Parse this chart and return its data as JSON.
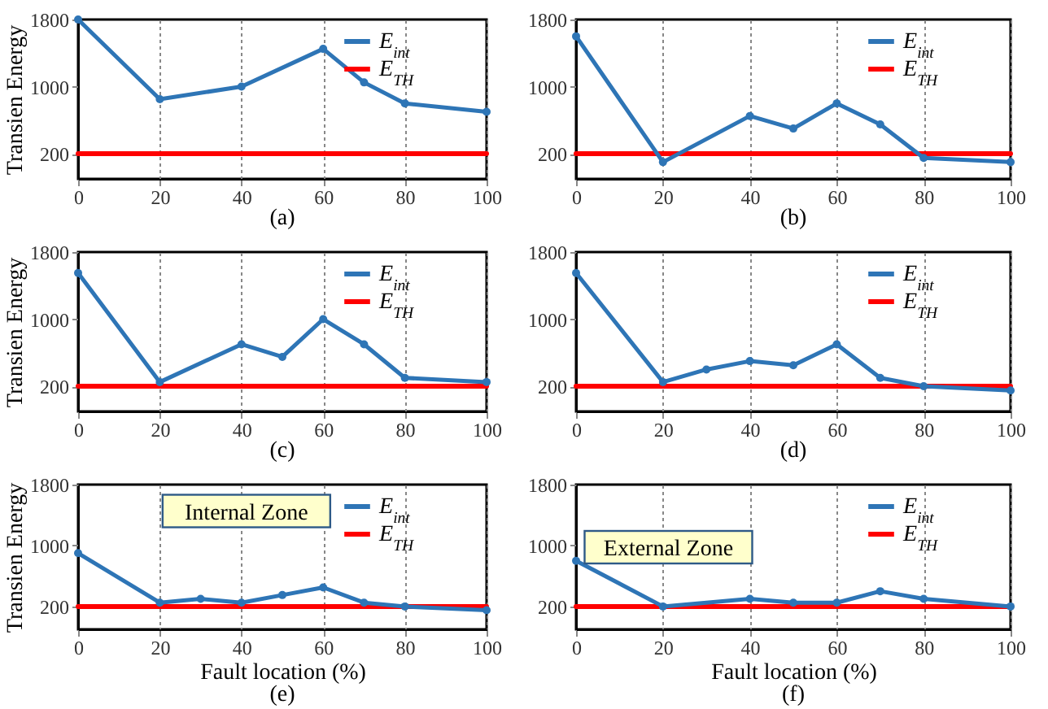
{
  "chart_data": [
    {
      "type": "line",
      "title": "(a)",
      "ylabel": "Transien Energy",
      "xlim": [
        0,
        100
      ],
      "xticks": [
        0,
        20,
        40,
        60,
        80,
        100
      ],
      "ylim": [
        -100,
        1800
      ],
      "yticks": [
        200,
        1000,
        1800
      ],
      "grid": "x",
      "legend": "top right",
      "series": [
        {
          "name": "E$_{int}$",
          "color": "#2e75b6",
          "marker": "circle",
          "x": [
            0,
            20,
            40,
            60,
            70,
            80,
            100
          ],
          "values": [
            1800,
            850,
            1000,
            1450,
            1050,
            800,
            700
          ]
        },
        {
          "name": "E$_{TH}$",
          "color": "#ff0000",
          "marker": "none",
          "x": [
            0,
            100
          ],
          "values": [
            200,
            200
          ]
        }
      ]
    },
    {
      "type": "line",
      "title": "(b)",
      "xlim": [
        0,
        100
      ],
      "xticks": [
        0,
        20,
        40,
        60,
        80,
        100
      ],
      "ylim": [
        -100,
        1800
      ],
      "yticks": [
        200,
        1000,
        1800
      ],
      "grid": "x",
      "legend": "top right",
      "series": [
        {
          "name": "E$_{int}$",
          "color": "#2e75b6",
          "marker": "circle",
          "x": [
            0,
            20,
            40,
            50,
            60,
            70,
            80,
            100
          ],
          "values": [
            1600,
            100,
            650,
            500,
            800,
            550,
            150,
            100
          ]
        },
        {
          "name": "E$_{TH}$",
          "color": "#ff0000",
          "marker": "none",
          "x": [
            0,
            100
          ],
          "values": [
            200,
            200
          ]
        }
      ]
    },
    {
      "type": "line",
      "title": "(c)",
      "ylabel": "Transien Energy",
      "xlim": [
        0,
        100
      ],
      "xticks": [
        0,
        20,
        40,
        60,
        80,
        100
      ],
      "ylim": [
        -100,
        1800
      ],
      "yticks": [
        200,
        1000,
        1800
      ],
      "grid": "x",
      "legend": "top right",
      "series": [
        {
          "name": "E$_{int}$",
          "color": "#2e75b6",
          "marker": "circle",
          "x": [
            0,
            20,
            40,
            50,
            60,
            70,
            80,
            100
          ],
          "values": [
            1550,
            250,
            700,
            550,
            1000,
            700,
            300,
            250
          ]
        },
        {
          "name": "E$_{TH}$",
          "color": "#ff0000",
          "marker": "none",
          "x": [
            0,
            100
          ],
          "values": [
            200,
            200
          ]
        }
      ]
    },
    {
      "type": "line",
      "title": "(d)",
      "xlim": [
        0,
        100
      ],
      "xticks": [
        0,
        20,
        40,
        60,
        80,
        100
      ],
      "ylim": [
        -100,
        1800
      ],
      "yticks": [
        200,
        1000,
        1800
      ],
      "grid": "x",
      "legend": "top right",
      "series": [
        {
          "name": "E$_{int}$",
          "color": "#2e75b6",
          "marker": "circle",
          "x": [
            0,
            20,
            30,
            40,
            50,
            60,
            70,
            80,
            100
          ],
          "values": [
            1550,
            250,
            400,
            500,
            450,
            700,
            300,
            200,
            150
          ]
        },
        {
          "name": "E$_{TH}$",
          "color": "#ff0000",
          "marker": "none",
          "x": [
            0,
            100
          ],
          "values": [
            200,
            200
          ]
        }
      ]
    },
    {
      "type": "line",
      "title": "(e)",
      "xlabel": "Fault location (%)",
      "ylabel": "Transien Energy",
      "xlim": [
        0,
        100
      ],
      "xticks": [
        0,
        20,
        40,
        60,
        80,
        100
      ],
      "ylim": [
        -100,
        1800
      ],
      "yticks": [
        200,
        1000,
        1800
      ],
      "grid": "x",
      "legend": "top right",
      "annotations": [
        "Internal Zone"
      ],
      "series": [
        {
          "name": "E$_{int}$",
          "color": "#2e75b6",
          "marker": "circle",
          "x": [
            0,
            20,
            30,
            40,
            50,
            60,
            70,
            80,
            100
          ],
          "values": [
            900,
            250,
            300,
            250,
            350,
            450,
            250,
            200,
            150
          ]
        },
        {
          "name": "E$_{TH}$",
          "color": "#ff0000",
          "marker": "none",
          "x": [
            0,
            100
          ],
          "values": [
            200,
            200
          ]
        }
      ]
    },
    {
      "type": "line",
      "title": "(f)",
      "xlabel": "Fault location (%)",
      "xlim": [
        0,
        100
      ],
      "xticks": [
        0,
        20,
        40,
        60,
        80,
        100
      ],
      "ylim": [
        -100,
        1800
      ],
      "yticks": [
        200,
        1000,
        1800
      ],
      "grid": "x",
      "legend": "top right",
      "annotations": [
        "External Zone"
      ],
      "series": [
        {
          "name": "E$_{int}$",
          "color": "#2e75b6",
          "marker": "circle",
          "x": [
            0,
            20,
            40,
            50,
            60,
            70,
            80,
            100
          ],
          "values": [
            800,
            200,
            300,
            250,
            250,
            400,
            300,
            200
          ]
        },
        {
          "name": "E$_{TH}$",
          "color": "#ff0000",
          "marker": "none",
          "x": [
            0,
            100
          ],
          "values": [
            200,
            200
          ]
        }
      ]
    }
  ]
}
